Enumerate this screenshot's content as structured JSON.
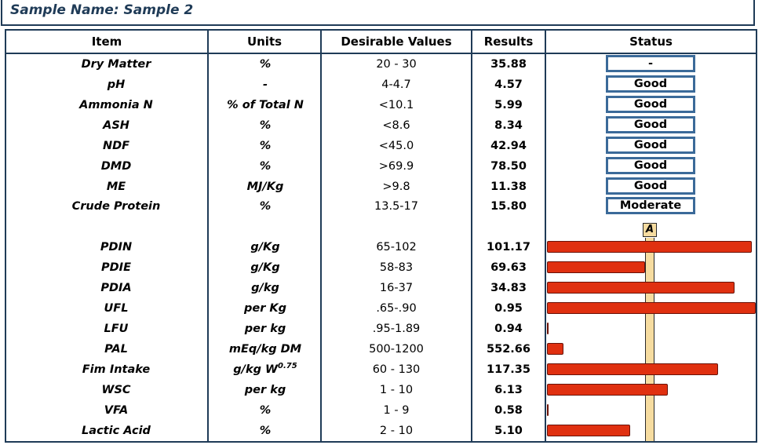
{
  "title": "Sample Name: Sample 2",
  "headers": {
    "item": "Item",
    "units": "Units",
    "desirable": "Desirable Values",
    "results": "Results",
    "status": "Status"
  },
  "rows": [
    {
      "item": "Dry Matter",
      "units": "%",
      "desirable": "20 - 30",
      "result": "35.88",
      "status": "-"
    },
    {
      "item": "pH",
      "units": "-",
      "desirable": "4-4.7",
      "result": "4.57",
      "status": "Good"
    },
    {
      "item": "Ammonia N",
      "units": "% of Total N",
      "desirable": "<10.1",
      "result": "5.99",
      "status": "Good"
    },
    {
      "item": "ASH",
      "units": "%",
      "desirable": "<8.6",
      "result": "8.34",
      "status": "Good"
    },
    {
      "item": "NDF",
      "units": "%",
      "desirable": "<45.0",
      "result": "42.94",
      "status": "Good"
    },
    {
      "item": "DMD",
      "units": "%",
      "desirable": ">69.9",
      "result": "78.50",
      "status": "Good"
    },
    {
      "item": "ME",
      "units": "MJ/Kg",
      "desirable": ">9.8",
      "result": "11.38",
      "status": "Good"
    },
    {
      "item": "Crude Protein",
      "units": "%",
      "desirable": "13.5-17",
      "result": "15.80",
      "status": "Moderate"
    }
  ],
  "ref_label": "A",
  "bar_rows": [
    {
      "item": "PDIN",
      "units": "g/Kg",
      "desirable": "65-102",
      "result": "101.17",
      "bar_level": 0.98
    },
    {
      "item": "PDIE",
      "units": "g/Kg",
      "desirable": "58-83",
      "result": "69.63",
      "bar_level": 0.47
    },
    {
      "item": "PDIA",
      "units": "g/kg",
      "desirable": "16-37",
      "result": "34.83",
      "bar_level": 0.9
    },
    {
      "item": "UFL",
      "units": "per Kg",
      "desirable": ".65-.90",
      "result": "0.95",
      "bar_level": 1.0
    },
    {
      "item": "LFU",
      "units": "per kg",
      "desirable": ".95-1.89",
      "result": "0.94",
      "bar_level": 0.0
    },
    {
      "item": "PAL",
      "units": "mEq/kg DM",
      "desirable": "500-1200",
      "result": "552.66",
      "bar_level": 0.08
    },
    {
      "item": "Fim Intake",
      "units": "g/kg W",
      "units_sup": "0.75",
      "desirable": "60 - 130",
      "result": "117.35",
      "bar_level": 0.82
    },
    {
      "item": "WSC",
      "units": "per kg",
      "desirable": "1 - 10",
      "result": "6.13",
      "bar_level": 0.58
    },
    {
      "item": "VFA",
      "units": "%",
      "desirable": "1 - 9",
      "result": "0.58",
      "bar_level": 0.0
    },
    {
      "item": "Lactic Acid",
      "units": "%",
      "desirable": "2 - 10",
      "result": "5.10",
      "bar_level": 0.4
    }
  ],
  "colors": {
    "frame": "#1f3b57",
    "status_border": "#3b6a99",
    "bar": "#e03010",
    "ref_band": "#f6dca0"
  }
}
